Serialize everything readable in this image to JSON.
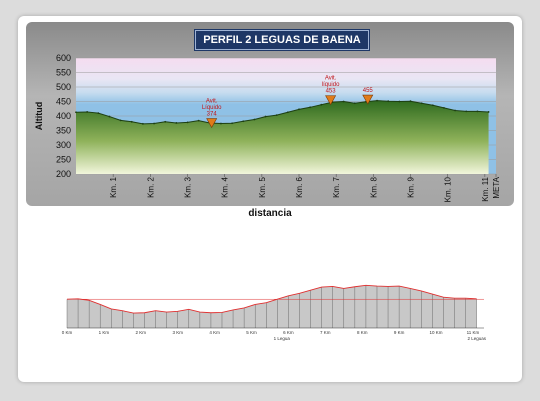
{
  "title": "PERFIL 2 LEGUAS DE BAENA",
  "chart_data": [
    {
      "type": "area",
      "title": "PERFIL 2 LEGUAS DE BAENA",
      "xlabel": "distancia",
      "ylabel": "Altitud",
      "ylim": [
        200,
        600
      ],
      "yticks": [
        "200",
        "250",
        "300",
        "350",
        "400",
        "450",
        "500",
        "550",
        "600"
      ],
      "xlim": [
        0,
        11.3
      ],
      "x": [
        0,
        0.3,
        0.6,
        0.9,
        1.2,
        1.5,
        1.8,
        2.1,
        2.4,
        2.7,
        3.0,
        3.3,
        3.6,
        3.9,
        4.2,
        4.5,
        4.8,
        5.1,
        5.4,
        5.7,
        6.0,
        6.3,
        6.6,
        6.9,
        7.2,
        7.5,
        7.8,
        8.1,
        8.4,
        8.7,
        9.0,
        9.3,
        9.6,
        9.9,
        10.2,
        10.5,
        10.8,
        11.1
      ],
      "values": [
        413,
        414,
        410,
        398,
        385,
        380,
        373,
        374,
        380,
        376,
        378,
        384,
        376,
        374,
        375,
        382,
        388,
        398,
        403,
        413,
        423,
        430,
        439,
        448,
        450,
        444,
        449,
        453,
        451,
        450,
        451,
        444,
        437,
        428,
        419,
        416,
        416,
        414
      ],
      "x_tick_labels": [
        {
          "x": 1,
          "label": "Km. 1"
        },
        {
          "x": 2,
          "label": "Km. 2"
        },
        {
          "x": 3,
          "label": "Km. 3"
        },
        {
          "x": 4,
          "label": "Km. 4"
        },
        {
          "x": 5,
          "label": "Km. 5"
        },
        {
          "x": 6,
          "label": "Km. 6"
        },
        {
          "x": 7,
          "label": "Km. 7"
        },
        {
          "x": 8,
          "label": "Km. 8"
        },
        {
          "x": 9,
          "label": "Km. 9"
        },
        {
          "x": 10,
          "label": "Km. 10"
        },
        {
          "x": 11,
          "label": "Km. 11"
        },
        {
          "x": 11.3,
          "label": "META"
        }
      ],
      "annotations": [
        {
          "x": 3.65,
          "y": 374,
          "lines": [
            "Avit.",
            "Líquido",
            "374"
          ]
        },
        {
          "x": 6.85,
          "y": 453,
          "lines": [
            "Avit.",
            "líquido",
            "453"
          ]
        },
        {
          "x": 7.85,
          "y": 455,
          "lines": [
            "455"
          ]
        }
      ],
      "colors": {
        "fill_top": "#2f6b1f",
        "fill_bottom": "#f2f6dc",
        "line": "#1d3f12",
        "marker": "#e07b1a"
      },
      "grid": true
    },
    {
      "type": "line",
      "xlim": [
        0,
        11.3
      ],
      "ylim": [
        330,
        480
      ],
      "x_tick_labels": [
        "0 Km",
        "1 Km",
        "2 Km",
        "3 Km",
        "4 Km",
        "5 Km",
        "6 Km",
        "7 Km",
        "8 Km",
        "9 Km",
        "10 Km",
        "11 Km"
      ],
      "extra_labels": [
        "1 Legua",
        "2 Leguas"
      ],
      "colors": {
        "line": "#e03030",
        "fill": "#c8c8c8"
      }
    }
  ]
}
